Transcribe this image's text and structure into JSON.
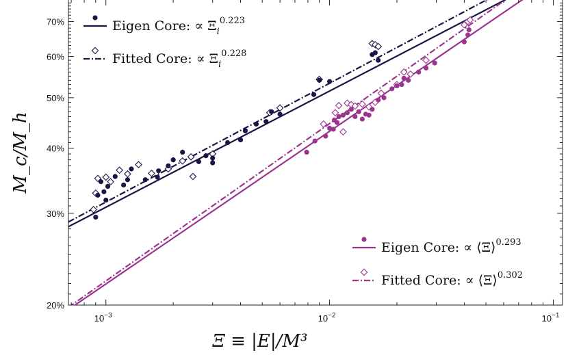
{
  "chart_data": {
    "type": "scatter",
    "xscale": "log",
    "yscale": "log",
    "xlim": [
      0.00068,
      0.11
    ],
    "ylim": [
      0.2,
      0.77
    ],
    "grid": false,
    "xlabel": "Ξ ≡ |E|/M³",
    "ylabel": "M_c/M_h",
    "xticks": [
      {
        "value": 0.001,
        "label": "10",
        "exp": "−3"
      },
      {
        "value": 0.01,
        "label": "10",
        "exp": "−2"
      },
      {
        "value": 0.1,
        "label": "10",
        "exp": "−1"
      }
    ],
    "yticks": [
      {
        "value": 0.2,
        "label": "20%"
      },
      {
        "value": 0.3,
        "label": "30%"
      },
      {
        "value": 0.4,
        "label": "40%"
      },
      {
        "value": 0.5,
        "label": "50%"
      },
      {
        "value": 0.6,
        "label": "60%"
      },
      {
        "value": 0.7,
        "label": "70%"
      }
    ],
    "series": [
      {
        "name": "Eigen Core: ∝ Ξ_i^0.223",
        "legend_main": "Eigen Core:  ∝ Ξ",
        "legend_sub": "i",
        "legend_exp": "0.223",
        "color": "#1c1445",
        "marker": "filled-circle",
        "line_style": "solid",
        "fit": {
          "slope": 0.223,
          "x0": 0.01,
          "y0": 0.515
        },
        "points": [
          [
            0.0009,
            0.295
          ],
          [
            0.00092,
            0.325
          ],
          [
            0.00095,
            0.345
          ],
          [
            0.00098,
            0.33
          ],
          [
            0.001,
            0.318
          ],
          [
            0.00102,
            0.338
          ],
          [
            0.0011,
            0.353
          ],
          [
            0.0012,
            0.34
          ],
          [
            0.00125,
            0.348
          ],
          [
            0.0013,
            0.365
          ],
          [
            0.0015,
            0.348
          ],
          [
            0.0017,
            0.352
          ],
          [
            0.00172,
            0.362
          ],
          [
            0.0019,
            0.37
          ],
          [
            0.002,
            0.38
          ],
          [
            0.0022,
            0.393
          ],
          [
            0.0026,
            0.377
          ],
          [
            0.0028,
            0.387
          ],
          [
            0.003,
            0.375
          ],
          [
            0.003,
            0.383
          ],
          [
            0.0035,
            0.41
          ],
          [
            0.004,
            0.415
          ],
          [
            0.0042,
            0.432
          ],
          [
            0.0047,
            0.445
          ],
          [
            0.0052,
            0.45
          ],
          [
            0.0055,
            0.47
          ],
          [
            0.006,
            0.465
          ],
          [
            0.0085,
            0.507
          ],
          [
            0.009,
            0.54
          ],
          [
            0.01,
            0.537
          ],
          [
            0.0155,
            0.605
          ],
          [
            0.016,
            0.61
          ],
          [
            0.0165,
            0.59
          ]
        ]
      },
      {
        "name": "Fitted Core: ∝ Ξ_i^0.228",
        "legend_main": "Fitted Core:  ∝ Ξ",
        "legend_sub": "i",
        "legend_exp": "0.228",
        "color": "#1c1445",
        "marker": "open-diamond",
        "line_style": "dashdot",
        "fit": {
          "slope": 0.228,
          "x0": 0.01,
          "y0": 0.533
        },
        "points": [
          [
            0.00088,
            0.305
          ],
          [
            0.0009,
            0.328
          ],
          [
            0.00092,
            0.35
          ],
          [
            0.001,
            0.352
          ],
          [
            0.00105,
            0.345
          ],
          [
            0.00115,
            0.363
          ],
          [
            0.00125,
            0.357
          ],
          [
            0.0014,
            0.372
          ],
          [
            0.0016,
            0.358
          ],
          [
            0.0019,
            0.365
          ],
          [
            0.0022,
            0.378
          ],
          [
            0.0024,
            0.385
          ],
          [
            0.00245,
            0.353
          ],
          [
            0.003,
            0.39
          ],
          [
            0.0054,
            0.468
          ],
          [
            0.006,
            0.478
          ],
          [
            0.009,
            0.542
          ],
          [
            0.0155,
            0.635
          ],
          [
            0.016,
            0.632
          ],
          [
            0.0165,
            0.627
          ]
        ]
      },
      {
        "name": "Eigen Core: ∝ ⟨Ξ⟩^0.293",
        "legend_main": "Eigen Core:  ∝ ⟨Ξ⟩",
        "legend_sub": "",
        "legend_exp": "0.293",
        "color": "#9c3590",
        "marker": "filled-circle",
        "line_style": "solid",
        "fit": {
          "slope": 0.293,
          "x0": 0.01,
          "y0": 0.431
        },
        "points": [
          [
            0.0079,
            0.393
          ],
          [
            0.0086,
            0.413
          ],
          [
            0.0096,
            0.422
          ],
          [
            0.01,
            0.437
          ],
          [
            0.0104,
            0.435
          ],
          [
            0.0105,
            0.453
          ],
          [
            0.0108,
            0.448
          ],
          [
            0.011,
            0.46
          ],
          [
            0.0115,
            0.463
          ],
          [
            0.012,
            0.468
          ],
          [
            0.0125,
            0.475
          ],
          [
            0.013,
            0.46
          ],
          [
            0.0135,
            0.47
          ],
          [
            0.014,
            0.455
          ],
          [
            0.0145,
            0.465
          ],
          [
            0.015,
            0.463
          ],
          [
            0.0155,
            0.475
          ],
          [
            0.0165,
            0.495
          ],
          [
            0.0175,
            0.5
          ],
          [
            0.019,
            0.52
          ],
          [
            0.02,
            0.527
          ],
          [
            0.021,
            0.53
          ],
          [
            0.0215,
            0.545
          ],
          [
            0.0225,
            0.54
          ],
          [
            0.025,
            0.56
          ],
          [
            0.027,
            0.57
          ],
          [
            0.0295,
            0.583
          ],
          [
            0.04,
            0.64
          ],
          [
            0.0415,
            0.66
          ],
          [
            0.042,
            0.675
          ]
        ]
      },
      {
        "name": "Fitted Core: ∝ ⟨Ξ⟩^0.302",
        "legend_main": "Fitted Core:  ∝ ⟨Ξ⟩",
        "legend_sub": "",
        "legend_exp": "0.302",
        "color": "#9c3590",
        "marker": "open-diamond",
        "line_style": "dashdot",
        "fit": {
          "slope": 0.302,
          "x0": 0.01,
          "y0": 0.446
        },
        "points": [
          [
            0.0094,
            0.445
          ],
          [
            0.0106,
            0.468
          ],
          [
            0.011,
            0.483
          ],
          [
            0.0115,
            0.43
          ],
          [
            0.012,
            0.488
          ],
          [
            0.0125,
            0.485
          ],
          [
            0.013,
            0.482
          ],
          [
            0.014,
            0.486
          ],
          [
            0.015,
            0.48
          ],
          [
            0.016,
            0.49
          ],
          [
            0.017,
            0.51
          ],
          [
            0.02,
            0.53
          ],
          [
            0.0215,
            0.56
          ],
          [
            0.023,
            0.555
          ],
          [
            0.027,
            0.59
          ],
          [
            0.04,
            0.69
          ],
          [
            0.0415,
            0.7
          ],
          [
            0.0425,
            0.705
          ]
        ]
      }
    ]
  }
}
